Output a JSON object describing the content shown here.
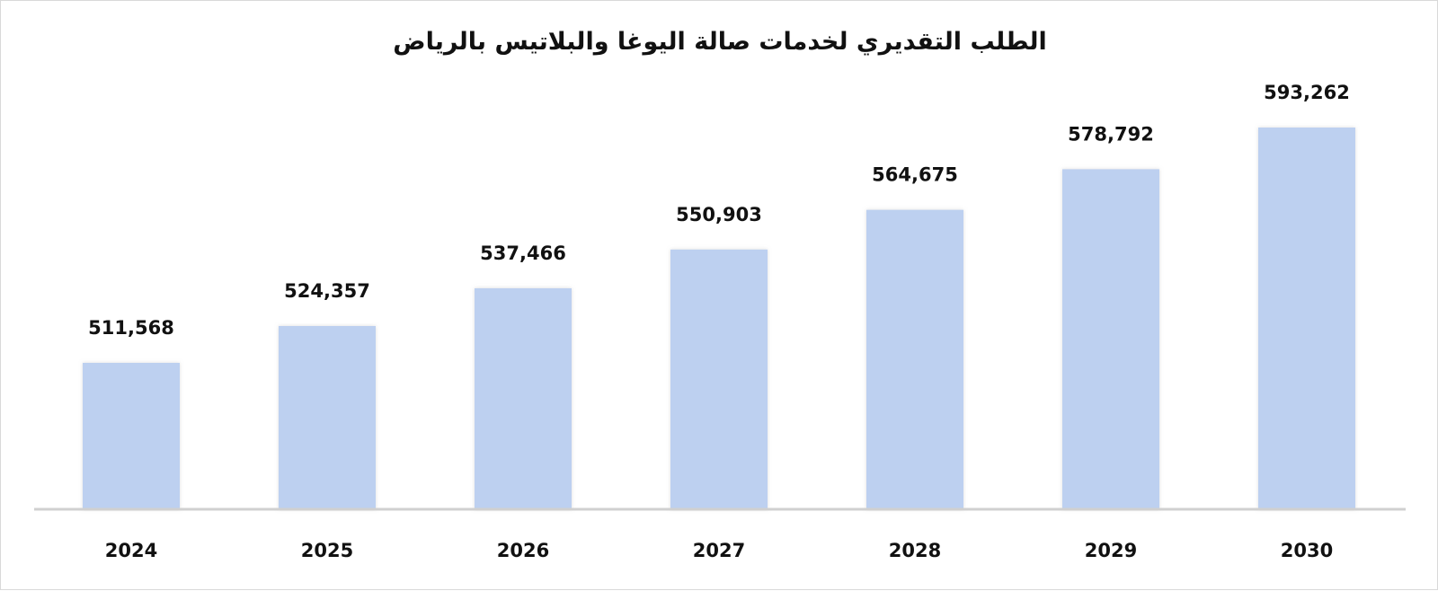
{
  "chart_data": {
    "type": "bar",
    "title": "الطلب التقديري لخدمات صالة اليوغا والبلاتيس بالرياض",
    "categories": [
      "2024",
      "2025",
      "2026",
      "2027",
      "2028",
      "2029",
      "2030"
    ],
    "values": [
      511568,
      524357,
      537466,
      550903,
      564675,
      578792,
      593262
    ],
    "value_labels": [
      "511,568",
      "524,357",
      "537,466",
      "550,903",
      "564,675",
      "578,792",
      "593,262"
    ],
    "xlabel": "",
    "ylabel": "",
    "grid": false,
    "legend": "none",
    "bar_color": "#bdd0f0",
    "axis_color": "#d0d0d0"
  }
}
